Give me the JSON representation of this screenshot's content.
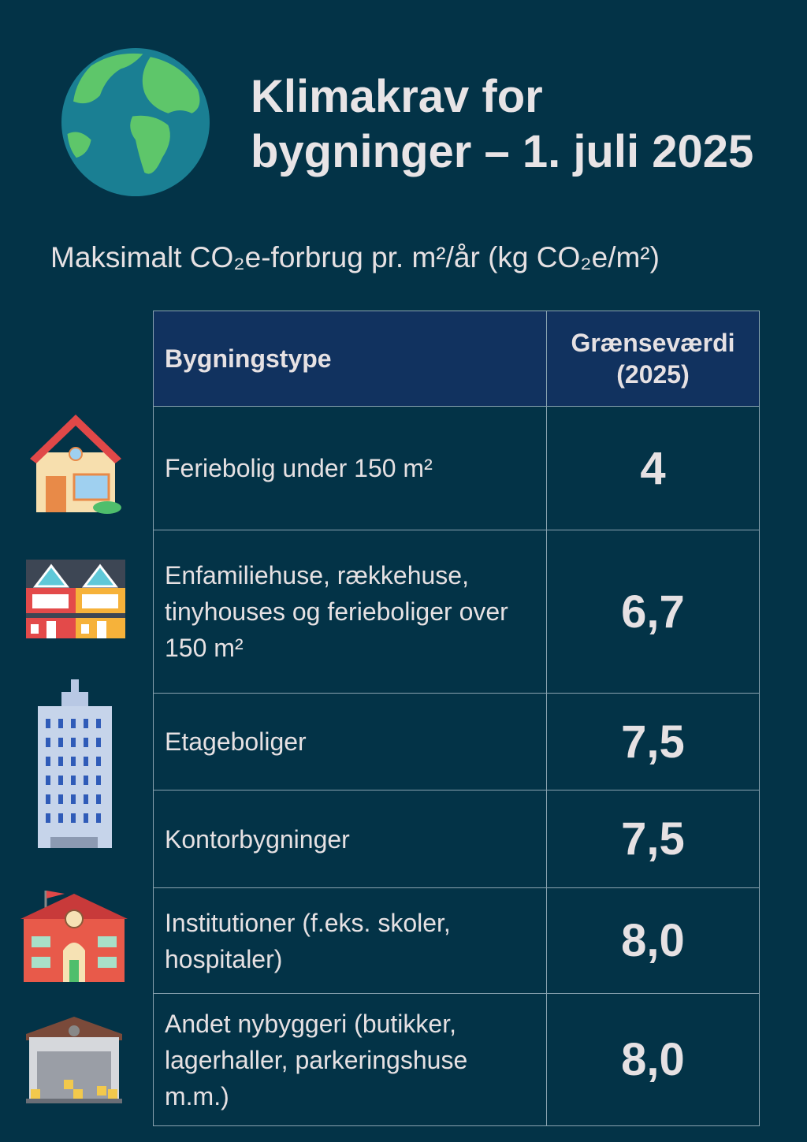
{
  "title": {
    "line1": "Klimakrav for",
    "line2": "bygninger – 1. juli 2025"
  },
  "subtitle": "Maksimalt CO₂e-forbrug pr. m²/år (kg CO₂e/m²)",
  "table": {
    "headers": [
      "Bygningstype",
      "Grænseværdi (2025)"
    ],
    "rows": [
      {
        "type": "Feriebolig under 150 m²",
        "value": "4",
        "icon": "house-icon"
      },
      {
        "type": "Enfamiliehuse, rækkehuse, tinyhouses og ferieboliger over 150 m²",
        "value": "6,7",
        "icon": "row-houses-icon"
      },
      {
        "type": "Etageboliger",
        "value": "7,5",
        "icon": "apartment-tower-icon"
      },
      {
        "type": "Kontorbygninger",
        "value": "7,5",
        "icon": "office-icon"
      },
      {
        "type": "Institutioner (f.eks. skoler, hospitaler)",
        "value": "8,0",
        "icon": "school-icon"
      },
      {
        "type": "Andet nybyggeri (butikker, lagerhaller, parkeringshuse m.m.)",
        "value": "8,0",
        "icon": "warehouse-icon"
      }
    ]
  }
}
